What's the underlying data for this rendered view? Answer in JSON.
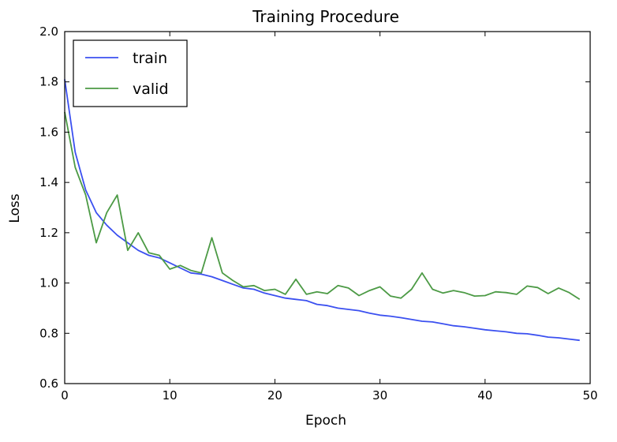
{
  "chart_data": {
    "type": "line",
    "title": "Training Procedure",
    "xlabel": "Epoch",
    "ylabel": "Loss",
    "xlim": [
      0,
      50
    ],
    "ylim": [
      0.6,
      2.0
    ],
    "xticks": [
      0,
      10,
      20,
      30,
      40,
      50
    ],
    "yticks": [
      0.6,
      0.8,
      1.0,
      1.2,
      1.4,
      1.6,
      1.8,
      2.0
    ],
    "xtick_labels": [
      "0",
      "10",
      "20",
      "30",
      "40",
      "50"
    ],
    "ytick_labels": [
      "0.6",
      "0.8",
      "1.0",
      "1.2",
      "1.4",
      "1.6",
      "1.8",
      "2.0"
    ],
    "grid": false,
    "legend_position": "top-left",
    "x": [
      0,
      1,
      2,
      3,
      4,
      5,
      6,
      7,
      8,
      9,
      10,
      11,
      12,
      13,
      14,
      15,
      16,
      17,
      18,
      19,
      20,
      21,
      22,
      23,
      24,
      25,
      26,
      27,
      28,
      29,
      30,
      31,
      32,
      33,
      34,
      35,
      36,
      37,
      38,
      39,
      40,
      41,
      42,
      43,
      44,
      45,
      46,
      47,
      48,
      49
    ],
    "series": [
      {
        "name": "train",
        "color": "#3b50f0",
        "values": [
          1.81,
          1.52,
          1.37,
          1.28,
          1.23,
          1.19,
          1.16,
          1.13,
          1.11,
          1.1,
          1.08,
          1.06,
          1.04,
          1.035,
          1.025,
          1.01,
          0.995,
          0.98,
          0.975,
          0.96,
          0.95,
          0.94,
          0.935,
          0.93,
          0.915,
          0.91,
          0.9,
          0.895,
          0.89,
          0.88,
          0.872,
          0.868,
          0.862,
          0.855,
          0.848,
          0.845,
          0.838,
          0.83,
          0.826,
          0.82,
          0.814,
          0.81,
          0.806,
          0.8,
          0.798,
          0.792,
          0.785,
          0.782,
          0.777,
          0.772
        ]
      },
      {
        "name": "valid",
        "color": "#4c9a45",
        "values": [
          1.68,
          1.46,
          1.35,
          1.16,
          1.28,
          1.35,
          1.13,
          1.2,
          1.12,
          1.11,
          1.055,
          1.07,
          1.05,
          1.04,
          1.18,
          1.04,
          1.01,
          0.985,
          0.99,
          0.97,
          0.975,
          0.955,
          1.015,
          0.955,
          0.965,
          0.958,
          0.99,
          0.98,
          0.95,
          0.97,
          0.985,
          0.948,
          0.94,
          0.975,
          1.04,
          0.975,
          0.96,
          0.97,
          0.962,
          0.948,
          0.95,
          0.965,
          0.962,
          0.955,
          0.988,
          0.982,
          0.958,
          0.98,
          0.962,
          0.935
        ]
      }
    ]
  }
}
